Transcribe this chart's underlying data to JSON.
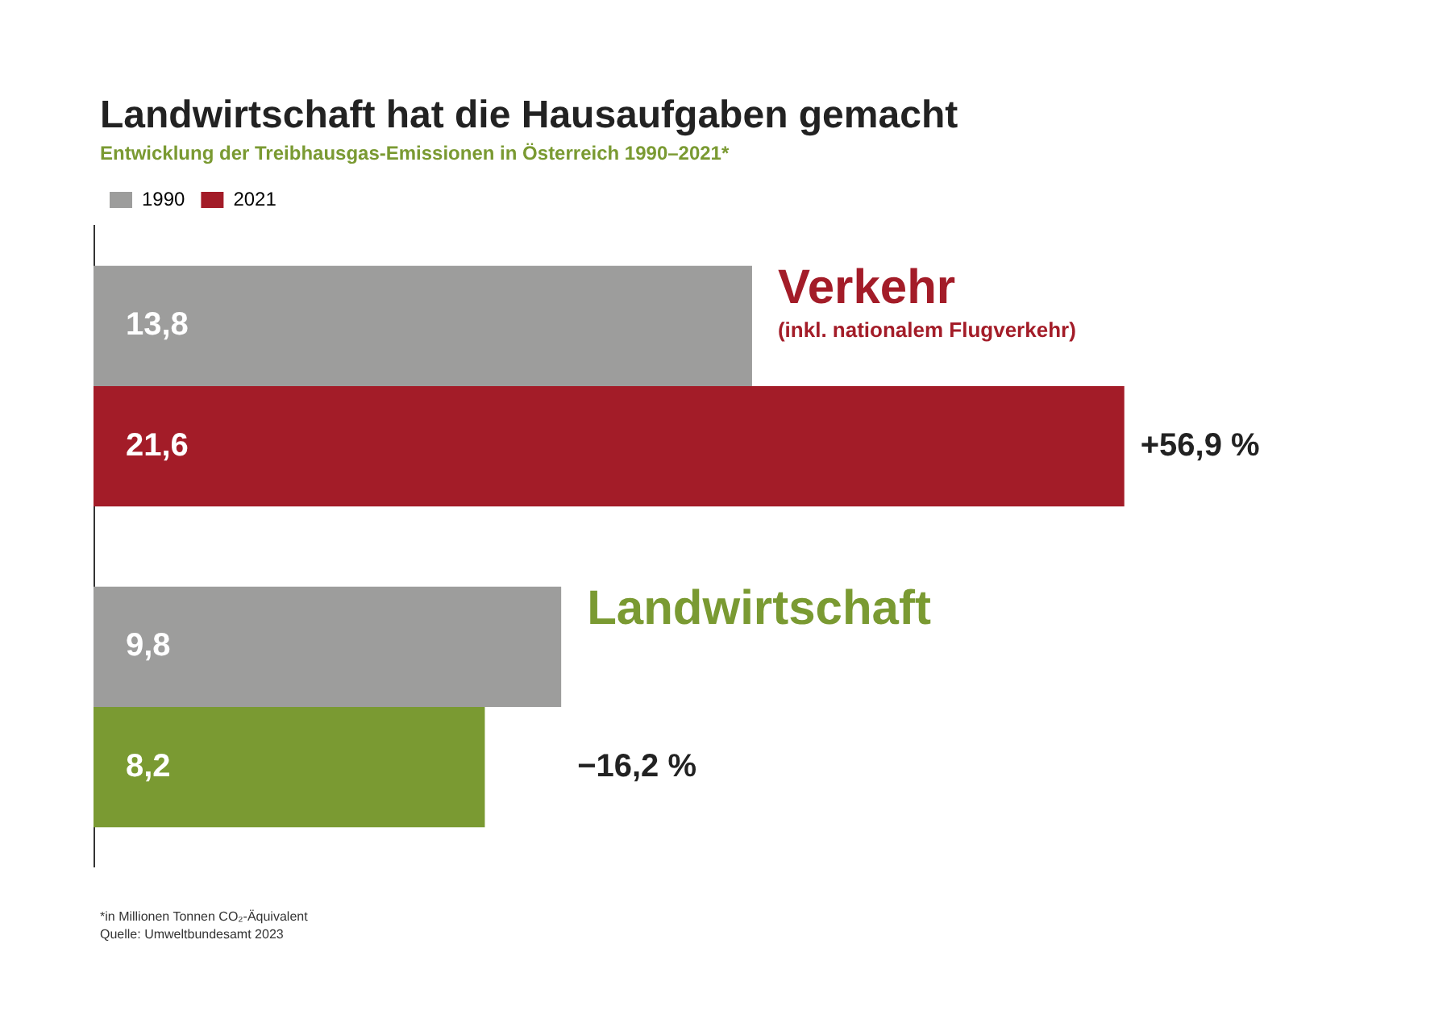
{
  "chart_data": {
    "type": "bar",
    "orientation": "horizontal",
    "title": "Landwirtschaft hat die Hausaufgaben gemacht",
    "subtitle": "Entwicklung der Treibhausgas-Emissionen in Österreich 1990–2021*",
    "categories": [
      "Verkehr",
      "Landwirtschaft"
    ],
    "series": [
      {
        "name": "1990",
        "color": "#9d9d9c",
        "values": [
          13.8,
          9.8
        ],
        "value_labels": [
          "13,8",
          "9,8"
        ]
      },
      {
        "name": "2021",
        "color": "#a31c28",
        "colors": [
          "#a31c28",
          "#7a9a32"
        ],
        "values": [
          21.6,
          8.2
        ],
        "value_labels": [
          "21,6",
          "8,2"
        ]
      }
    ],
    "annotations": [
      {
        "text": "(inkl. nationalem Flugverkehr)",
        "y": "Verkehr"
      },
      {
        "text": "+56,9 %",
        "x": 21.6,
        "y": "Verkehr"
      },
      {
        "text": "−16,2 %",
        "x": 9.8,
        "y": "Landwirtschaft"
      },
      "*in Millionen Tonnen CO₂-Äquivalent",
      "Quelle: Umweltbundesamt 2023"
    ],
    "legend": "top left",
    "grid": false,
    "tick_labels": false
  }
}
